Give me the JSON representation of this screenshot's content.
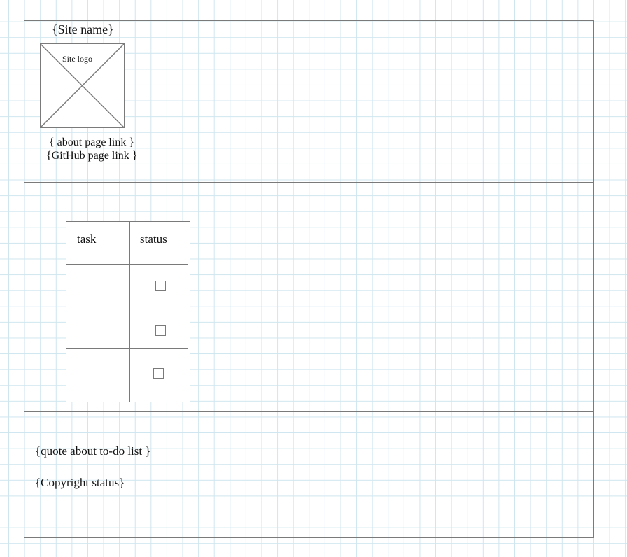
{
  "header": {
    "site_name": "{Site name}",
    "logo_label": "Site logo",
    "about_link": "{ about page link }",
    "github_link": "{GitHub page link  }"
  },
  "main": {
    "table": {
      "columns": [
        "task",
        "status"
      ],
      "rows": [
        {
          "task": "",
          "status_checked": false
        },
        {
          "task": "",
          "status_checked": false
        },
        {
          "task": "",
          "status_checked": false
        }
      ]
    }
  },
  "footer": {
    "quote": "{quote about to-do list }",
    "copyright": "{Copyright status}"
  },
  "colors": {
    "wireframe_line": "#7a7a7a",
    "grid_line": "#cfe6ef",
    "background": "#ffffff",
    "text": "#111111"
  }
}
